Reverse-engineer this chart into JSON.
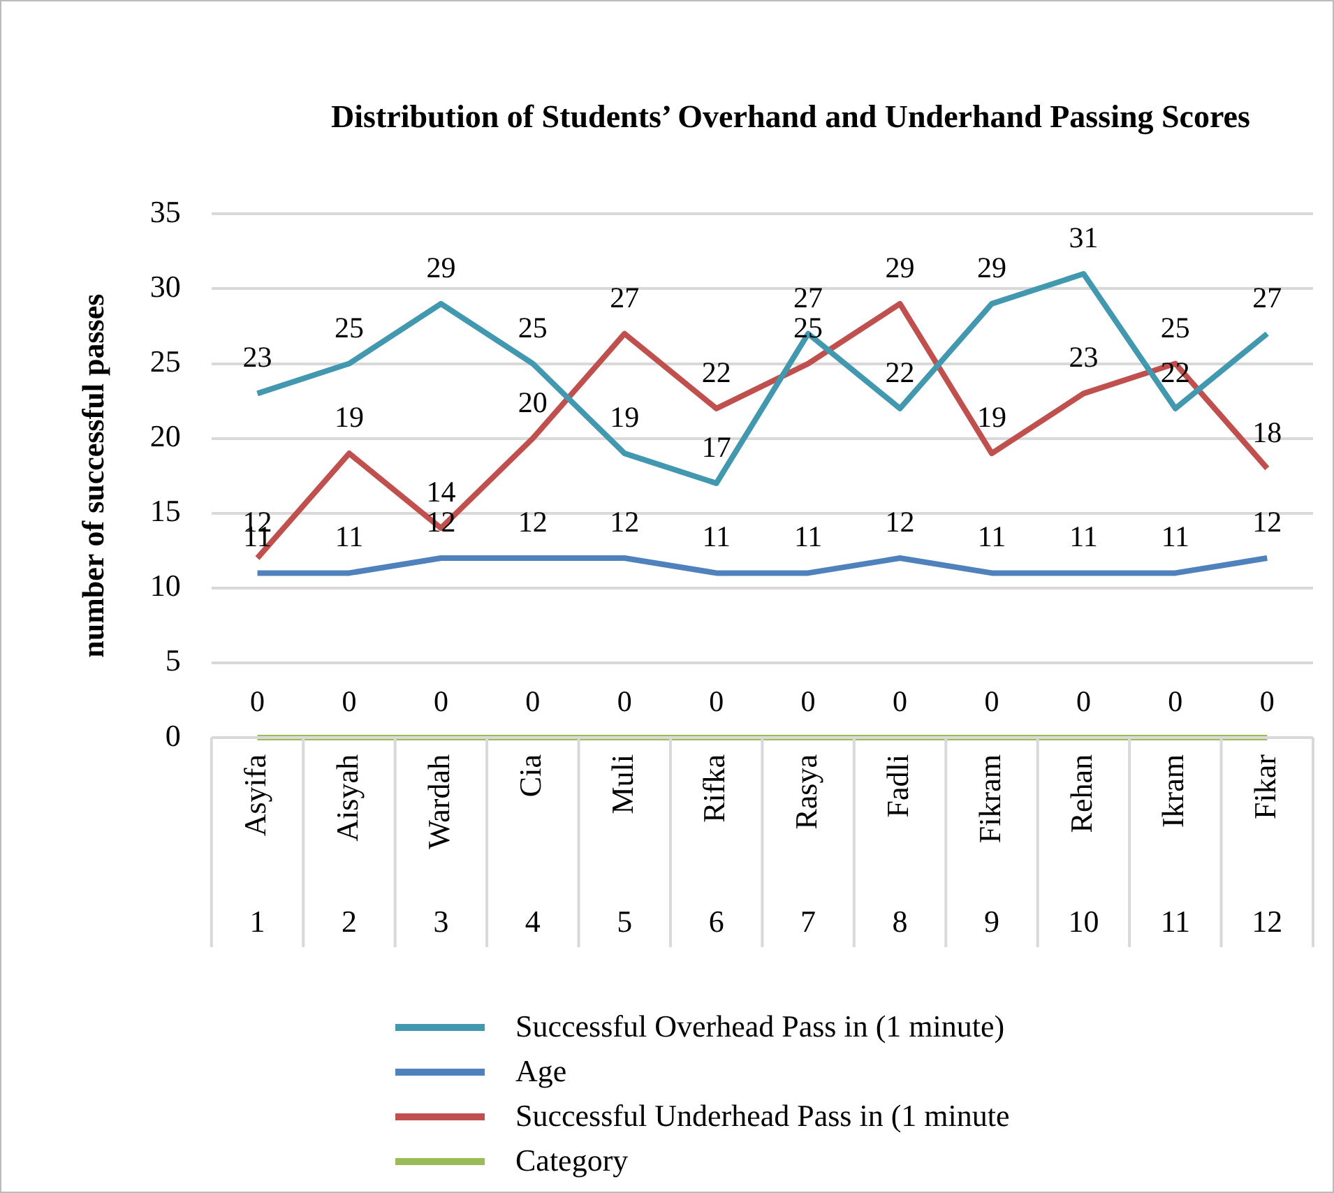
{
  "chart_data": {
    "type": "line",
    "title": "Distribution of Students’ Overhand and Underhand Passing Scores",
    "ylabel": "number of successful passes",
    "categories": [
      "Asyifa\n1",
      "Aisyah\n2",
      "Wardah\n3",
      "Cia\n4",
      "Muli\n5",
      "Rifka\n6",
      "Rasya\n7",
      "Fadli\n8",
      "Fikram\n9",
      "Rehan\n10",
      "Ikram\n11",
      "Fikar\n12"
    ],
    "series": [
      {
        "name": "Successful Overhead Pass in (1 minute)",
        "color": "#4198af",
        "values": [
          23,
          25,
          29,
          25,
          19,
          17,
          27,
          22,
          29,
          31,
          22,
          27
        ]
      },
      {
        "name": "Age",
        "color": "#4f81bd",
        "values": [
          11,
          11,
          12,
          12,
          12,
          11,
          11,
          12,
          11,
          11,
          11,
          12
        ]
      },
      {
        "name": "Successful Underhead Pass in (1 minute",
        "color": "#c0504d",
        "values": [
          12,
          19,
          14,
          20,
          27,
          22,
          25,
          29,
          19,
          23,
          25,
          18
        ]
      },
      {
        "name": "Category",
        "color": "#9bbb59",
        "values": [
          0,
          0,
          0,
          0,
          0,
          0,
          0,
          0,
          0,
          0,
          0,
          0
        ]
      }
    ],
    "ylim": [
      0,
      35
    ],
    "yticks": [
      0,
      5,
      10,
      15,
      20,
      25,
      30,
      35
    ],
    "grid": "y",
    "legend": "bottom",
    "data_labels": true,
    "marker": "none",
    "line_style": "solid"
  }
}
